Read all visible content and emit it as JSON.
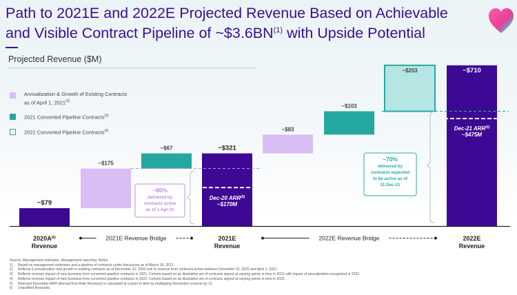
{
  "header": {
    "title_line1": "Path to 2021E and 2022E Projected Revenue Based on Achievable",
    "title_line2_pre": "and Visible Contract Pipeline of ~$3.6BN",
    "title_sup": "(1)",
    "title_line2_post": " with Upside Potential",
    "logo_icon": "heart-icon"
  },
  "subtitle": "Projected Revenue ($M)",
  "legend": [
    {
      "text": "Annualization & Growth of Existing Contracts as of April 1, 2021",
      "sup": "(2)",
      "color": "#d9bdf5",
      "style": "fill"
    },
    {
      "text": "2021 Converted Pipeline Contracts",
      "sup": "(3)",
      "color": "#25a8a2",
      "style": "fill"
    },
    {
      "text": "2022 Converted Pipeline Contracts",
      "sup": "(4)",
      "color": "#25a8a2",
      "style": "outline"
    }
  ],
  "colors": {
    "purple": "#3d0894",
    "lavender": "#d9bdf5",
    "teal": "#25a8a2",
    "light_teal": "#b5e6e3",
    "lavender_text": "#b98de4",
    "title": "#3a0f8f"
  },
  "chart_data": {
    "type": "waterfall",
    "title": "Projected Revenue ($M)",
    "bars": [
      {
        "label": "~$79",
        "base": 0,
        "value": 79,
        "kind": "total"
      },
      {
        "label": "~$175",
        "base": 79,
        "value": 175,
        "kind": "annualization"
      },
      {
        "label": "~$67",
        "base": 254,
        "value": 67,
        "kind": "pipeline_2021"
      },
      {
        "label": "~$321",
        "base": 0,
        "value": 321,
        "kind": "total"
      },
      {
        "label": "~$83",
        "base": 321,
        "value": 83,
        "kind": "annualization"
      },
      {
        "label": "~$103",
        "base": 404,
        "value": 103,
        "kind": "pipeline_2021"
      },
      {
        "label": "~$203",
        "base": 507,
        "value": 203,
        "kind": "pipeline_2022"
      },
      {
        "label": "~$710",
        "base": 0,
        "value": 710,
        "kind": "total"
      }
    ],
    "x_labels": [
      {
        "line1": "2020A",
        "sup": "(6)",
        "line2": "Revenue"
      },
      {
        "line1": "2021E",
        "sup": "",
        "line2": "Revenue"
      },
      {
        "line1": "2022E",
        "sup": "",
        "line2": "Revenue"
      }
    ],
    "bridge_labels": [
      "2021E Revenue Bridge",
      "2022E Revenue Bridge"
    ],
    "annotations": {
      "arr_2021": {
        "line1": "Dec-20 ARR",
        "sup": "(5)",
        "line2": "~$170M",
        "value": 170
      },
      "arr_2022": {
        "line1": "Dec-21 ARR",
        "sup": "(5)",
        "line2": "~$475M",
        "value": 475
      },
      "callout_2021": [
        "~80%",
        "delivered by",
        "contracts active",
        "as of 1-Apr-21"
      ],
      "callout_2022": [
        "~70%",
        "delivered by",
        "contracts expected",
        "to be active as of",
        "31 Dec-21"
      ]
    }
  },
  "footnotes": {
    "source": "Source: Management estimates. Management reporting. Notes:",
    "items": [
      {
        "num": "1)",
        "text": "Based on management estimates and a pipeline of contracts under discussion as of March 15, 2021."
      },
      {
        "num": "2)",
        "text": "Reflects i) annualization and growth in existing contracts as of December 31, 2020 and ii) revenue from contracts active between December 31, 2020 and April 1, 2021."
      },
      {
        "num": "3)",
        "text": "Reflects revenue impact of new business from converted pipeline contracts in 2021. Cohorts based on an illustrative set of contracts signed at varying points in time in 2021 with impact of annualization recognized in 2022."
      },
      {
        "num": "4)",
        "text": "Reflects revenue impact of new business from converted pipeline contracts in 2022. Cohorts based on an illustrative set of contracts signed at varying points in time in 2022."
      },
      {
        "num": "5)",
        "text": "Relevant December ARR (Annual Run-Rate Revenue) is calculated at a point in time by multiplying December revenue by 12."
      },
      {
        "num": "6)",
        "text": "Unaudited financials."
      }
    ]
  }
}
